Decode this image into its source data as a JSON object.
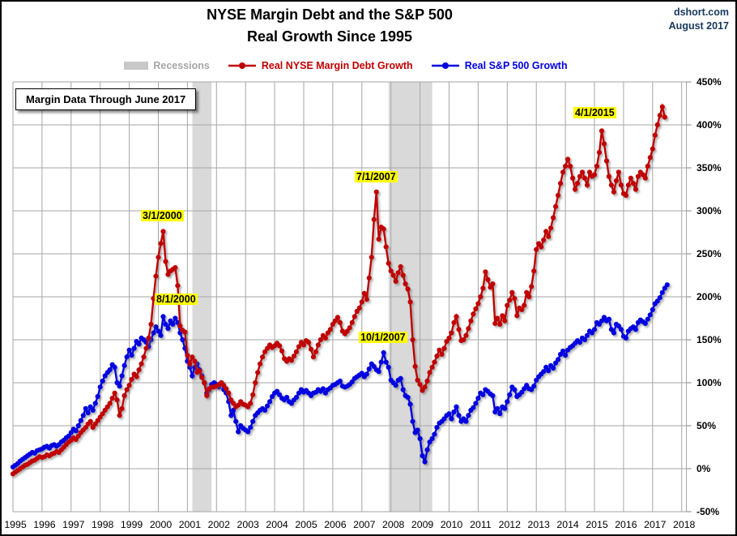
{
  "header": {
    "title_line1": "NYSE Margin Debt and the S&P 500",
    "title_line2": "Real Growth Since 1995",
    "source": "dshort.com",
    "date": "August 2017"
  },
  "note_box": {
    "text": "Margin Data Through June 2017"
  },
  "legend": [
    {
      "label": "Recessions",
      "color": "#A6A6A6",
      "swatch": "#C8C8C8",
      "type": "band"
    },
    {
      "label": "Real NYSE Margin Debt Growth",
      "color": "#C00000",
      "type": "line-dot"
    },
    {
      "label": "Real S&P 500 Growth",
      "color": "#0000E0",
      "type": "line-dot"
    }
  ],
  "annotations": [
    {
      "text": "3/1/2000"
    },
    {
      "text": "8/1/2000"
    },
    {
      "text": "7/1/2007"
    },
    {
      "text": "10/1/2007"
    },
    {
      "text": "4/1/2015"
    }
  ],
  "chart_data": {
    "type": "line",
    "title": "NYSE Margin Debt and the S&P 500 Real Growth Since 1995",
    "x_unit": "monthly, starting 1995-01",
    "x_ticks": [
      1995,
      1996,
      1997,
      1998,
      1999,
      2000,
      2001,
      2002,
      2003,
      2004,
      2005,
      2006,
      2007,
      2008,
      2009,
      2010,
      2011,
      2012,
      2013,
      2014,
      2015,
      2016,
      2017,
      2018
    ],
    "y_ticks": [
      450,
      400,
      350,
      300,
      250,
      200,
      150,
      100,
      50,
      0,
      -50
    ],
    "y_min": -50,
    "y_max": 450,
    "y_format": "percent",
    "grid": true,
    "grid_color": "#A6A6A6",
    "recession_color": "#D9D9D9",
    "recessions": [
      {
        "start": 2001.17,
        "end": 2001.83
      },
      {
        "start": 2007.92,
        "end": 2009.42
      }
    ],
    "series": [
      {
        "id": "margin-debt",
        "name": "Real NYSE Margin Debt Growth",
        "color": "#C00000",
        "start": "1995-01",
        "values": [
          -6,
          -4,
          -2,
          0,
          2,
          4,
          5,
          7,
          9,
          10,
          12,
          14,
          13,
          14,
          16,
          15,
          17,
          18,
          20,
          19,
          22,
          25,
          28,
          31,
          33,
          36,
          34,
          38,
          42,
          45,
          48,
          52,
          55,
          48,
          52,
          56,
          60,
          64,
          68,
          72,
          76,
          82,
          88,
          80,
          62,
          70,
          85,
          92,
          97,
          104,
          110,
          107,
          115,
          122,
          130,
          140,
          152,
          168,
          198,
          224,
          246,
          262,
          276,
          241,
          226,
          230,
          232,
          234,
          213,
          166,
          161,
          159,
          132,
          122,
          130,
          125,
          112,
          114,
          106,
          100,
          85,
          93,
          95,
          95,
          96,
          98,
          100,
          97,
          93,
          88,
          80,
          76,
          72,
          74,
          78,
          75,
          74,
          72,
          76,
          86,
          100,
          112,
          122,
          130,
          136,
          140,
          144,
          141,
          143,
          146,
          143,
          137,
          128,
          125,
          128,
          126,
          131,
          136,
          142,
          147,
          144,
          149,
          147,
          139,
          130,
          136,
          144,
          150,
          155,
          152,
          158,
          162,
          168,
          172,
          176,
          170,
          160,
          157,
          160,
          164,
          170,
          177,
          183,
          187,
          194,
          204,
          197,
          222,
          246,
          290,
          322,
          267,
          281,
          279,
          258,
          239,
          230,
          225,
          218,
          228,
          235,
          225,
          215,
          209,
          194,
          150,
          119,
          103,
          98,
          91,
          95,
          102,
          112,
          118,
          124,
          131,
          138,
          133,
          140,
          148,
          152,
          158,
          170,
          177,
          162,
          149,
          150,
          155,
          163,
          172,
          180,
          186,
          192,
          200,
          210,
          229,
          220,
          211,
          215,
          169,
          175,
          168,
          178,
          172,
          190,
          196,
          205,
          198,
          178,
          187,
          185,
          190,
          205,
          200,
          212,
          230,
          255,
          262,
          258,
          266,
          276,
          270,
          280,
          292,
          305,
          318,
          332,
          345,
          352,
          360,
          352,
          338,
          325,
          332,
          340,
          345,
          338,
          330,
          345,
          340,
          342,
          352,
          368,
          393,
          378,
          358,
          340,
          330,
          322,
          335,
          345,
          330,
          320,
          318,
          330,
          338,
          332,
          325,
          340,
          345,
          342,
          338,
          352,
          362,
          372,
          388,
          400,
          411,
          421,
          409
        ]
      },
      {
        "id": "sp500",
        "name": "Real S&P 500 Growth",
        "color": "#0000E0",
        "start": "1995-01",
        "values": [
          2,
          4,
          6,
          9,
          11,
          13,
          15,
          17,
          19,
          18,
          21,
          22,
          23,
          25,
          26,
          24,
          27,
          28,
          26,
          28,
          31,
          33,
          36,
          38,
          42,
          46,
          44,
          50,
          56,
          62,
          70,
          65,
          72,
          68,
          76,
          84,
          95,
          102,
          108,
          112,
          115,
          121,
          118,
          100,
          96,
          108,
          120,
          130,
          138,
          132,
          140,
          148,
          145,
          152,
          150,
          147,
          142,
          150,
          158,
          165,
          160,
          155,
          177,
          168,
          163,
          172,
          168,
          175,
          170,
          158,
          150,
          140,
          125,
          118,
          108,
          118,
          122,
          115,
          108,
          100,
          88,
          92,
          98,
          100,
          98,
          95,
          100,
          92,
          88,
          78,
          62,
          68,
          55,
          43,
          50,
          47,
          45,
          43,
          48,
          55,
          62,
          65,
          68,
          70,
          68,
          73,
          78,
          84,
          88,
          90,
          86,
          82,
          80,
          83,
          78,
          76,
          80,
          83,
          88,
          92,
          89,
          91,
          88,
          85,
          88,
          89,
          92,
          90,
          93,
          88,
          92,
          94,
          97,
          98,
          100,
          102,
          96,
          95,
          96,
          98,
          101,
          105,
          107,
          109,
          111,
          107,
          110,
          116,
          122,
          119,
          115,
          113,
          124,
          135,
          124,
          118,
          103,
          100,
          97,
          103,
          105,
          92,
          85,
          83,
          75,
          55,
          42,
          45,
          35,
          15,
          8,
          22,
          31,
          35,
          40,
          48,
          53,
          55,
          58,
          62,
          64,
          58,
          66,
          72,
          62,
          55,
          58,
          55,
          62,
          68,
          71,
          76,
          82,
          88,
          86,
          92,
          90,
          87,
          85,
          66,
          70,
          64,
          72,
          70,
          78,
          86,
          95,
          92,
          84,
          86,
          89,
          93,
          97,
          93,
          92,
          96,
          103,
          107,
          110,
          113,
          118,
          114,
          120,
          117,
          123,
          127,
          133,
          137,
          132,
          138,
          141,
          143,
          146,
          149,
          147,
          152,
          150,
          155,
          160,
          158,
          162,
          170,
          168,
          172,
          176,
          172,
          174,
          162,
          158,
          168,
          166,
          162,
          154,
          152,
          160,
          163,
          165,
          162,
          170,
          173,
          171,
          169,
          174,
          179,
          185,
          192,
          195,
          199,
          205,
          210,
          214
        ]
      }
    ]
  }
}
